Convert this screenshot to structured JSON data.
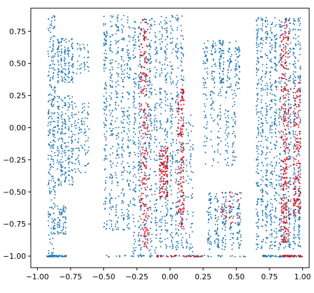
{
  "chart_data": {
    "type": "scatter",
    "title": "",
    "xlabel": "",
    "ylabel": "",
    "xlim": [
      -1.05,
      1.05
    ],
    "ylim": [
      -1.09,
      0.93
    ],
    "grid": false,
    "legend": "none",
    "x_ticks": [
      {
        "value": -1.0,
        "label": "−1.00"
      },
      {
        "value": -0.75,
        "label": "−0.75"
      },
      {
        "value": -0.5,
        "label": "−0.50"
      },
      {
        "value": -0.25,
        "label": "−0.25"
      },
      {
        "value": 0.0,
        "label": "0.00"
      },
      {
        "value": 0.25,
        "label": "0.25"
      },
      {
        "value": 0.5,
        "label": "0.50"
      },
      {
        "value": 0.75,
        "label": "0.75"
      },
      {
        "value": 1.0,
        "label": "1.00"
      }
    ],
    "y_ticks": [
      {
        "value": 0.75,
        "label": "0.75"
      },
      {
        "value": 0.5,
        "label": "0.50"
      },
      {
        "value": 0.25,
        "label": "0.25"
      },
      {
        "value": 0.0,
        "label": "0.00"
      },
      {
        "value": -0.25,
        "label": "−0.25"
      },
      {
        "value": -0.5,
        "label": "−0.50"
      },
      {
        "value": -0.75,
        "label": "−0.75"
      },
      {
        "value": -1.0,
        "label": "−1.00"
      }
    ],
    "series": [
      {
        "color": "#1f77b4",
        "clusters": [
          {
            "x": [
              -0.92,
              -0.86
            ],
            "y": [
              -1.0,
              0.87
            ],
            "density": 260
          },
          {
            "x": [
              -0.85,
              -0.72
            ],
            "y": [
              0.35,
              0.7
            ],
            "density": 140
          },
          {
            "x": [
              -0.85,
              -0.72
            ],
            "y": [
              -0.45,
              0.25
            ],
            "density": 220
          },
          {
            "x": [
              -0.85,
              -0.78
            ],
            "y": [
              -0.85,
              -0.6
            ],
            "density": 60
          },
          {
            "x": [
              -0.72,
              -0.6
            ],
            "y": [
              -0.35,
              0.2
            ],
            "density": 90
          },
          {
            "x": [
              -0.74,
              -0.6
            ],
            "y": [
              0.42,
              0.66
            ],
            "density": 40
          },
          {
            "x": [
              -0.5,
              -0.28
            ],
            "y": [
              -0.8,
              0.88
            ],
            "density": 520
          },
          {
            "x": [
              -0.28,
              -0.08
            ],
            "y": [
              -1.0,
              0.85
            ],
            "density": 520
          },
          {
            "x": [
              -0.08,
              0.12
            ],
            "y": [
              -0.95,
              0.88
            ],
            "density": 520
          },
          {
            "x": [
              0.12,
              0.18
            ],
            "y": [
              -1.0,
              0.1
            ],
            "density": 70
          },
          {
            "x": [
              0.25,
              0.55
            ],
            "y": [
              0.3,
              0.68
            ],
            "density": 220
          },
          {
            "x": [
              0.25,
              0.52
            ],
            "y": [
              -0.3,
              0.3
            ],
            "density": 160
          },
          {
            "x": [
              0.28,
              0.56
            ],
            "y": [
              -0.95,
              -0.5
            ],
            "density": 240
          },
          {
            "x": [
              0.65,
              0.82
            ],
            "y": [
              -0.95,
              0.86
            ],
            "density": 560
          },
          {
            "x": [
              0.82,
              1.0
            ],
            "y": [
              -0.95,
              0.86
            ],
            "density": 560
          }
        ],
        "baseline": {
          "y": -1.0,
          "x_ranges": [
            [
              -0.93,
              -0.78
            ],
            [
              -0.48,
              0.58
            ],
            [
              0.7,
              0.99
            ]
          ],
          "density": 220
        }
      },
      {
        "color": "#e8000b",
        "clusters": [
          {
            "x": [
              -0.22,
              -0.16
            ],
            "y": [
              -0.95,
              0.85
            ],
            "density": 200
          },
          {
            "x": [
              -0.08,
              -0.01
            ],
            "y": [
              -0.55,
              -0.15
            ],
            "density": 110
          },
          {
            "x": [
              0.06,
              0.11
            ],
            "y": [
              -0.8,
              0.3
            ],
            "density": 140
          },
          {
            "x": [
              0.84,
              0.9
            ],
            "y": [
              -0.9,
              0.85
            ],
            "density": 260
          },
          {
            "x": [
              0.93,
              0.99
            ],
            "y": [
              -0.7,
              0.35
            ],
            "density": 150
          },
          {
            "x": [
              0.38,
              0.54
            ],
            "y": [
              -0.75,
              -0.5
            ],
            "density": 30
          }
        ],
        "baseline": {
          "y": -1.0,
          "x_ranges": [
            [
              -0.1,
              0.25
            ],
            [
              0.85,
              1.0
            ]
          ],
          "density": 60
        }
      }
    ]
  }
}
